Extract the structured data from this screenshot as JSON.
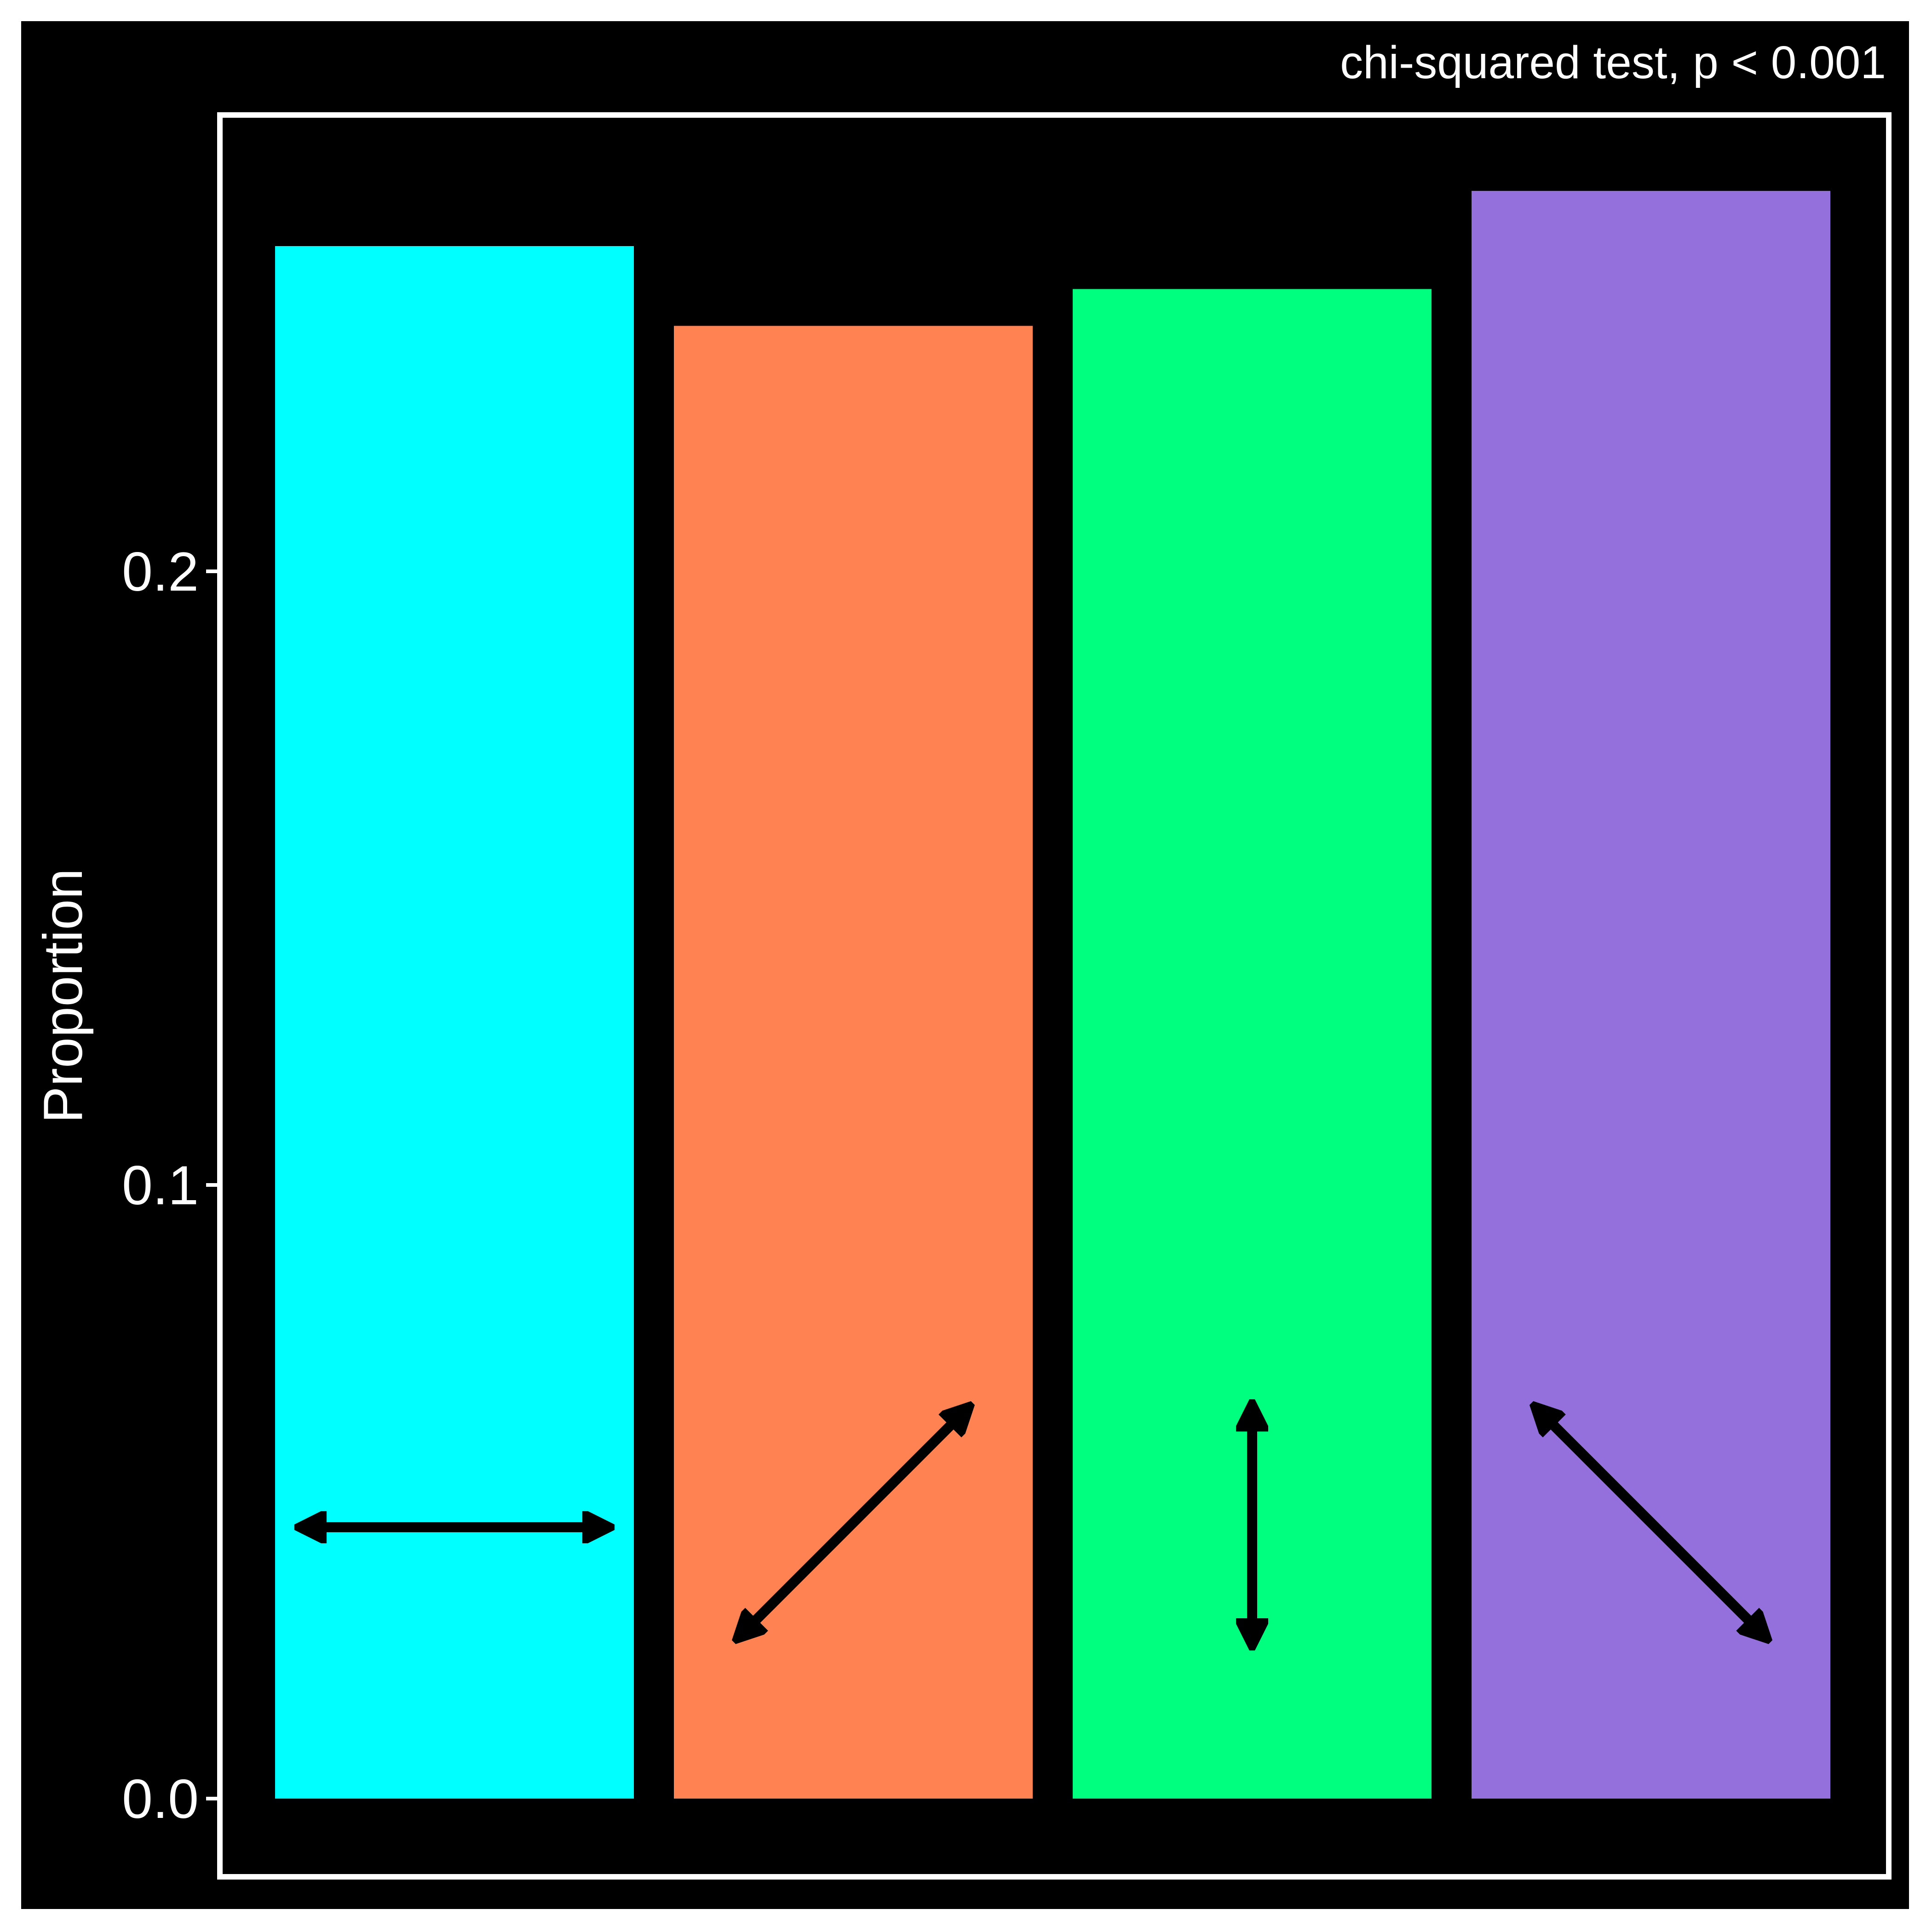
{
  "chart_data": {
    "type": "bar",
    "title": "",
    "annotation": "chi-squared test, p < 0.001",
    "xlabel": "",
    "ylabel": "Proportion",
    "ylim": [
      -0.013,
      0.275
    ],
    "yticks": [
      0.0,
      0.1,
      0.2
    ],
    "ytick_labels": [
      "0.0",
      "0.1",
      "0.2"
    ],
    "grid": false,
    "legend": "none",
    "categories": [
      "horizontal",
      "diagonal-up",
      "vertical",
      "diagonal-down"
    ],
    "category_icons": [
      "double-arrow-horizontal-icon",
      "double-arrow-diagonal-up-icon",
      "double-arrow-vertical-icon",
      "double-arrow-diagonal-down-icon"
    ],
    "values": [
      0.253,
      0.24,
      0.246,
      0.262
    ],
    "colors": [
      "#00FFFF",
      "#FF8253",
      "#00FF7F",
      "#9370DB"
    ],
    "background": "#000000",
    "foreground": "#FFFFFF",
    "icon_color": "#000000"
  }
}
